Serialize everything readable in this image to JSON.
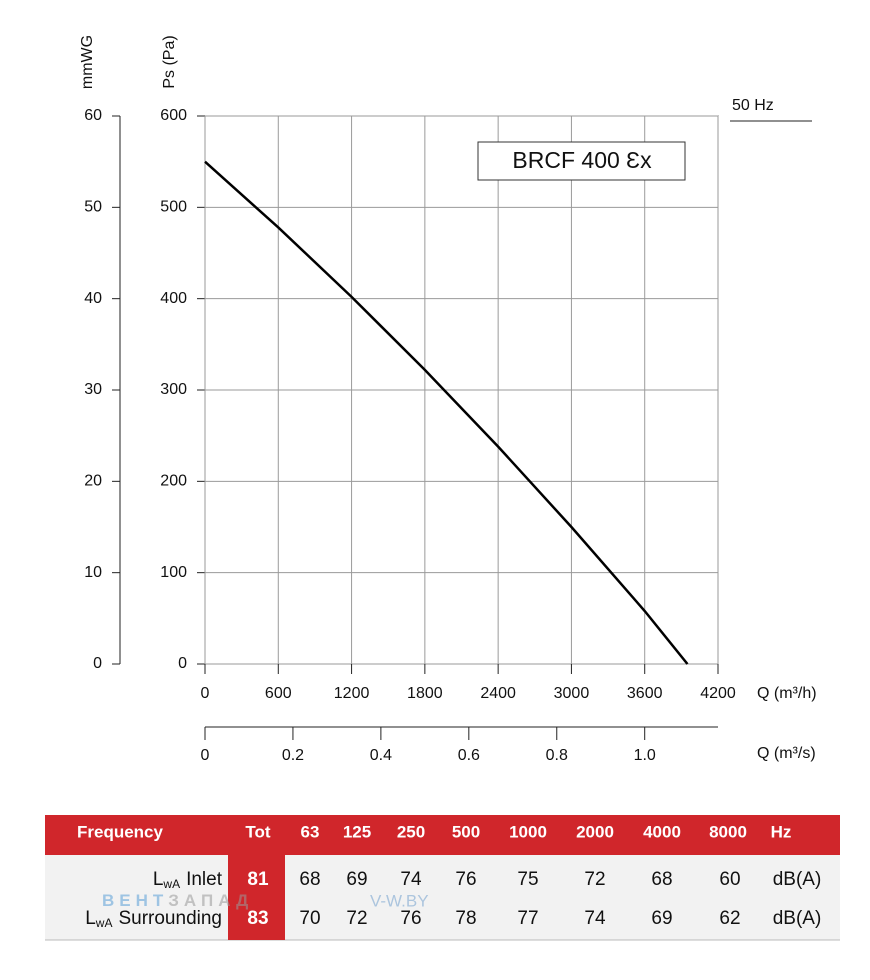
{
  "chart_data": {
    "type": "line",
    "x": [
      0,
      600,
      1200,
      1800,
      2400,
      3000,
      3600,
      3950
    ],
    "series": [
      {
        "color": "#000000",
        "values": [
          550,
          478,
          402,
          322,
          238,
          150,
          58,
          0
        ]
      }
    ],
    "xlim": [
      0,
      4200
    ],
    "xticks": [
      0,
      600,
      1200,
      1800,
      2400,
      3000,
      3600,
      4200
    ],
    "ylim": [
      0,
      600
    ],
    "yticks": [
      0,
      100,
      200,
      300,
      400,
      500,
      600
    ],
    "y2lim": [
      0,
      60
    ],
    "y2ticks": [
      0,
      10,
      20,
      30,
      40,
      50,
      60
    ],
    "x2lim": [
      0,
      1.1667
    ],
    "x2ticks": [
      0,
      0.2,
      0.4,
      0.6,
      0.8,
      {
        "value": 1,
        "label": "1.0"
      }
    ],
    "xlabel": "Q (m³/h)",
    "x2label": "Q (m³/s)",
    "ylabel": "Ps (Pa)",
    "y2label": "mmWG",
    "model": "BRCF 400 Ɛx",
    "annotation": "50 Hz",
    "grid": true
  },
  "table": {
    "header": [
      "Frequency",
      "Tot",
      "63",
      "125",
      "250",
      "500",
      "1000",
      "2000",
      "4000",
      "8000",
      "Hz"
    ],
    "rows": [
      {
        "label": {
          "symbol": "L",
          "sub": "wA",
          "name": "Inlet"
        },
        "cells": [
          81,
          68,
          69,
          74,
          76,
          75,
          72,
          68,
          60
        ],
        "unit": "dB(A)"
      },
      {
        "label": {
          "symbol": "L",
          "sub": "wA",
          "name": "Surrounding"
        },
        "cells": [
          83,
          70,
          72,
          76,
          78,
          77,
          74,
          69,
          62
        ],
        "unit": "dB(A)"
      }
    ]
  },
  "watermark": {
    "brand": [
      "ВЕНТ",
      "ЗАПАД"
    ],
    "site": "V-W.BY"
  }
}
